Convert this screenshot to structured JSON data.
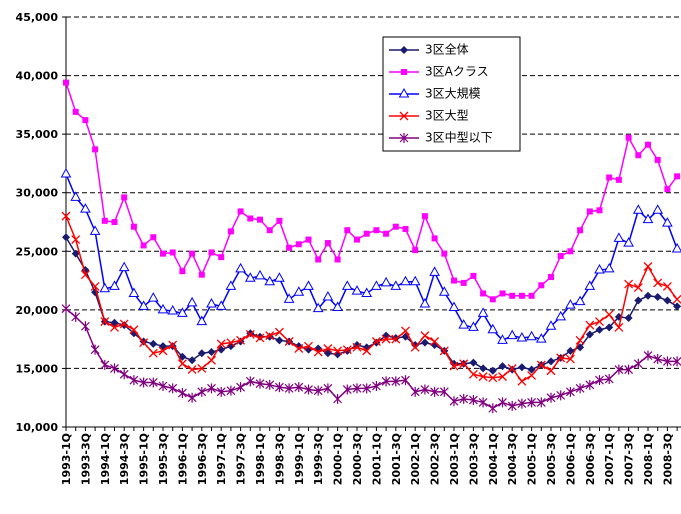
{
  "chart_data": {
    "type": "line",
    "categories": [
      "1993-1Q",
      null,
      "1993-3Q",
      null,
      "1994-1Q",
      null,
      "1994-3Q",
      null,
      "1995-1Q",
      null,
      "1995-3Q",
      null,
      "1996-1Q",
      null,
      "1996-3Q",
      null,
      "1997-1Q",
      null,
      "1997-3Q",
      null,
      "1998-1Q",
      null,
      "1998-3Q",
      null,
      "1999-1Q",
      null,
      "1999-3Q",
      null,
      "2000-1Q",
      null,
      "2000-3Q",
      null,
      "2001-1Q",
      null,
      "2001-3Q",
      null,
      "2002-1Q",
      null,
      "2002-3Q",
      null,
      "2003-1Q",
      null,
      "2003-3Q",
      null,
      "2004-1Q",
      null,
      "2004-3Q",
      null,
      "2005-1Q",
      null,
      "2005-3Q",
      null,
      "2006-1Q",
      null,
      "2006-3Q",
      null,
      "2007-1Q",
      null,
      "2007-3Q",
      null,
      "2008-1Q",
      null,
      "2008-3Q",
      null
    ],
    "series": [
      {
        "name": "3区全体",
        "color": "#1a1a6e",
        "marker": "diamond",
        "values": [
          26200,
          24800,
          23400,
          21500,
          19000,
          18900,
          18700,
          18000,
          17300,
          17100,
          16900,
          16900,
          16000,
          15700,
          16300,
          16400,
          16600,
          16900,
          17300,
          18000,
          17700,
          17700,
          17400,
          17300,
          16900,
          16600,
          16700,
          16300,
          16200,
          16500,
          17000,
          16800,
          17200,
          17800,
          17600,
          17700,
          17000,
          17200,
          17000,
          16500,
          15400,
          15400,
          15500,
          15000,
          14800,
          15200,
          14900,
          15100,
          14900,
          15300,
          15600,
          15900,
          16500,
          16800,
          17900,
          18300,
          18500,
          19400,
          19300,
          20800,
          21200,
          21100,
          20800,
          20300
        ]
      },
      {
        "name": "3区Aクラス",
        "color": "#ff00ff",
        "marker": "square",
        "values": [
          39400,
          36900,
          36200,
          33700,
          27600,
          27500,
          29600,
          27100,
          25500,
          26200,
          24800,
          24900,
          23300,
          24800,
          23000,
          24900,
          24500,
          26700,
          28400,
          27800,
          27700,
          26800,
          27600,
          25300,
          25600,
          26000,
          24300,
          25700,
          24300,
          26800,
          26000,
          26500,
          26800,
          26500,
          27100,
          26900,
          25100,
          28000,
          26100,
          24800,
          22500,
          22300,
          22900,
          21400,
          20900,
          21400,
          21200,
          21200,
          21200,
          22100,
          22800,
          24600,
          25000,
          26800,
          28400,
          28500,
          31300,
          31100,
          34700,
          33200,
          34100,
          32800,
          30300,
          31400
        ]
      },
      {
        "name": "3区大規模",
        "color": "#0000ff",
        "marker": "triangle",
        "values": [
          31600,
          29600,
          28600,
          26700,
          21800,
          22000,
          23600,
          21400,
          20300,
          21000,
          20000,
          19900,
          19700,
          20600,
          19000,
          20500,
          20300,
          22000,
          23500,
          22700,
          22900,
          22400,
          22700,
          20900,
          21500,
          22000,
          20100,
          21100,
          20200,
          22000,
          21600,
          21400,
          22000,
          22300,
          22000,
          22400,
          22400,
          20500,
          23200,
          21500,
          20200,
          18700,
          18500,
          19700,
          18300,
          17400,
          17800,
          17600,
          17700,
          17500,
          18600,
          19400,
          20400,
          20700,
          22000,
          23400,
          23500,
          26100,
          25700,
          28500,
          27700,
          28500,
          27400,
          25200
        ]
      },
      {
        "name": "3区大型",
        "color": "#ff0000",
        "marker": "x",
        "values": [
          28000,
          26000,
          23000,
          22000,
          19000,
          18500,
          18800,
          18300,
          17200,
          16300,
          16500,
          17000,
          15400,
          14900,
          15000,
          15700,
          17100,
          17200,
          17400,
          17900,
          17600,
          17800,
          18100,
          17300,
          16700,
          16900,
          16400,
          16700,
          16500,
          16600,
          16800,
          16500,
          17300,
          17500,
          17500,
          18200,
          16800,
          17800,
          17300,
          16500,
          15200,
          15400,
          14500,
          14300,
          14200,
          14300,
          15000,
          13900,
          14400,
          15300,
          14800,
          15900,
          15800,
          17400,
          18700,
          19000,
          19600,
          18500,
          22200,
          21900,
          23700,
          22300,
          22000,
          20900
        ]
      },
      {
        "name": "3区中型以下",
        "color": "#800080",
        "marker": "star",
        "values": [
          20100,
          19400,
          18600,
          16600,
          15300,
          15000,
          14500,
          14000,
          13800,
          13800,
          13500,
          13300,
          12900,
          12500,
          13000,
          13300,
          13000,
          13100,
          13400,
          13900,
          13700,
          13600,
          13400,
          13300,
          13400,
          13200,
          13100,
          13300,
          12400,
          13200,
          13300,
          13300,
          13500,
          13900,
          13900,
          14000,
          13000,
          13200,
          13000,
          13000,
          12200,
          12400,
          12300,
          12100,
          11600,
          12100,
          11800,
          12000,
          12100,
          12100,
          12500,
          12700,
          13000,
          13300,
          13600,
          14000,
          14100,
          14900,
          14900,
          15400,
          16100,
          15800,
          15600,
          15600
        ]
      }
    ],
    "ylim": [
      10000,
      45000
    ],
    "yticks": [
      {
        "value": 10000,
        "label": "10,000"
      },
      {
        "value": 15000,
        "label": "15,000"
      },
      {
        "value": 20000,
        "label": "20,000"
      },
      {
        "value": 25000,
        "label": "25,000"
      },
      {
        "value": 30000,
        "label": "30,000"
      },
      {
        "value": 35000,
        "label": "35,000"
      },
      {
        "value": 40000,
        "label": "40,000"
      },
      {
        "value": 45000,
        "label": "45,000"
      }
    ],
    "grid": true
  }
}
